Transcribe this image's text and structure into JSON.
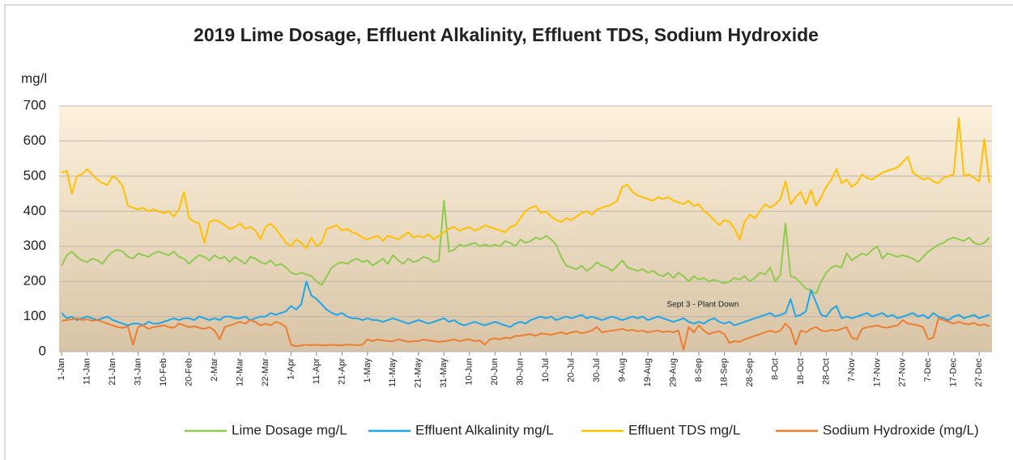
{
  "chart_data": {
    "type": "line",
    "title": "2019 Lime Dosage, Effluent Alkalinity, Effluent TDS, Sodium Hydroxide",
    "y_label": "mg/l",
    "annotation": "Sept 3 - Plant Down",
    "legend": "bottom",
    "grid": true,
    "ylim": [
      0,
      700
    ],
    "yticks": [
      0,
      100,
      200,
      300,
      400,
      500,
      600,
      700
    ],
    "categories": [
      "1-Jan",
      null,
      null,
      null,
      null,
      "11-Jan",
      null,
      null,
      null,
      null,
      "21-Jan",
      null,
      null,
      null,
      null,
      "31-Jan",
      null,
      null,
      null,
      null,
      "10-Feb",
      null,
      null,
      null,
      null,
      "20-Feb",
      null,
      null,
      null,
      null,
      "2-Mar",
      null,
      null,
      null,
      null,
      "12-Mar",
      null,
      null,
      null,
      null,
      "22-Mar",
      null,
      null,
      null,
      null,
      "1-Apr",
      null,
      null,
      null,
      null,
      "11-Apr",
      null,
      null,
      null,
      null,
      "21-Apr",
      null,
      null,
      null,
      null,
      "1-May",
      null,
      null,
      null,
      null,
      "11-May",
      null,
      null,
      null,
      null,
      "21-May",
      null,
      null,
      null,
      null,
      "31-May",
      null,
      null,
      null,
      null,
      "10-Jun",
      null,
      null,
      null,
      null,
      "20-Jun",
      null,
      null,
      null,
      null,
      "30-Jun",
      null,
      null,
      null,
      null,
      "10-Jul",
      null,
      null,
      null,
      null,
      "20-Jul",
      null,
      null,
      null,
      null,
      "30-Jul",
      null,
      null,
      null,
      null,
      "9-Aug",
      null,
      null,
      null,
      null,
      "19-Aug",
      null,
      null,
      null,
      null,
      "29-Aug",
      null,
      null,
      null,
      null,
      "8-Sep",
      null,
      null,
      null,
      null,
      "18-Sep",
      null,
      null,
      null,
      null,
      "28-Sep",
      null,
      null,
      null,
      null,
      "8-Oct",
      null,
      null,
      null,
      null,
      "18-Oct",
      null,
      null,
      null,
      null,
      "28-Oct",
      null,
      null,
      null,
      null,
      "7-Nov",
      null,
      null,
      null,
      null,
      "17-Nov",
      null,
      null,
      null,
      null,
      "27-Nov",
      null,
      null,
      null,
      null,
      "7-Dec",
      null,
      null,
      null,
      null,
      "17-Dec",
      null,
      null,
      null,
      null,
      "27-Dec",
      null,
      null
    ],
    "series": [
      {
        "name": "Lime Dosage mg/L",
        "color": "#8fca4f",
        "values": [
          245,
          275,
          285,
          270,
          260,
          255,
          265,
          260,
          250,
          270,
          285,
          290,
          285,
          270,
          265,
          280,
          275,
          270,
          280,
          285,
          280,
          275,
          285,
          270,
          265,
          250,
          265,
          275,
          270,
          260,
          275,
          265,
          270,
          255,
          270,
          260,
          250,
          270,
          265,
          255,
          250,
          260,
          245,
          250,
          240,
          225,
          220,
          225,
          220,
          215,
          200,
          190,
          215,
          240,
          250,
          255,
          250,
          260,
          265,
          255,
          260,
          245,
          255,
          265,
          250,
          275,
          260,
          250,
          265,
          255,
          260,
          270,
          265,
          255,
          260,
          430,
          285,
          290,
          305,
          300,
          305,
          310,
          300,
          305,
          300,
          305,
          300,
          315,
          310,
          300,
          320,
          310,
          315,
          325,
          320,
          330,
          320,
          305,
          270,
          245,
          240,
          235,
          245,
          230,
          240,
          255,
          245,
          240,
          230,
          245,
          260,
          240,
          235,
          230,
          235,
          225,
          230,
          220,
          215,
          225,
          210,
          225,
          215,
          200,
          215,
          205,
          210,
          200,
          205,
          200,
          195,
          200,
          210,
          205,
          215,
          200,
          210,
          225,
          220,
          240,
          200,
          220,
          365,
          215,
          210,
          195,
          180,
          175,
          165,
          200,
          225,
          240,
          245,
          240,
          280,
          260,
          270,
          280,
          275,
          290,
          300,
          265,
          280,
          275,
          270,
          275,
          270,
          265,
          255,
          270,
          285,
          295,
          305,
          310,
          320,
          325,
          320,
          315,
          325,
          310,
          305,
          310,
          325
        ]
      },
      {
        "name": "Effluent Alkalinity mg/L",
        "color": "#1fa6e8",
        "values": [
          110,
          95,
          100,
          90,
          95,
          100,
          95,
          90,
          95,
          100,
          90,
          85,
          80,
          75,
          80,
          80,
          75,
          85,
          80,
          80,
          85,
          90,
          95,
          90,
          95,
          95,
          90,
          100,
          95,
          90,
          95,
          90,
          100,
          100,
          95,
          95,
          100,
          90,
          95,
          100,
          100,
          110,
          105,
          110,
          115,
          130,
          120,
          135,
          200,
          160,
          150,
          135,
          120,
          110,
          105,
          110,
          100,
          95,
          95,
          90,
          95,
          90,
          90,
          85,
          90,
          95,
          90,
          85,
          80,
          85,
          90,
          85,
          80,
          85,
          90,
          95,
          85,
          90,
          80,
          75,
          80,
          85,
          80,
          75,
          80,
          85,
          80,
          75,
          70,
          80,
          85,
          80,
          90,
          95,
          100,
          95,
          100,
          90,
          95,
          100,
          95,
          100,
          105,
          95,
          100,
          95,
          90,
          95,
          100,
          95,
          90,
          95,
          100,
          95,
          100,
          90,
          95,
          100,
          95,
          90,
          85,
          90,
          95,
          85,
          80,
          85,
          80,
          90,
          95,
          85,
          80,
          85,
          75,
          80,
          85,
          90,
          95,
          100,
          105,
          110,
          100,
          105,
          110,
          150,
          100,
          105,
          115,
          175,
          140,
          105,
          100,
          120,
          130,
          95,
          100,
          95,
          100,
          105,
          110,
          100,
          105,
          110,
          100,
          105,
          95,
          100,
          105,
          110,
          100,
          105,
          95,
          110,
          100,
          95,
          90,
          100,
          105,
          95,
          100,
          105,
          95,
          100,
          105
        ]
      },
      {
        "name": "Effluent TDS mg/L",
        "color": "#ffc000",
        "values": [
          510,
          515,
          450,
          500,
          505,
          520,
          505,
          490,
          480,
          475,
          500,
          490,
          470,
          415,
          410,
          405,
          410,
          400,
          405,
          400,
          395,
          400,
          385,
          405,
          455,
          380,
          370,
          365,
          310,
          370,
          375,
          370,
          360,
          350,
          355,
          365,
          350,
          355,
          345,
          320,
          355,
          365,
          350,
          330,
          310,
          300,
          320,
          310,
          295,
          325,
          300,
          310,
          350,
          355,
          360,
          345,
          350,
          340,
          335,
          325,
          320,
          325,
          330,
          315,
          330,
          325,
          320,
          330,
          340,
          325,
          330,
          325,
          335,
          320,
          330,
          340,
          350,
          355,
          345,
          350,
          355,
          345,
          350,
          360,
          355,
          350,
          345,
          340,
          355,
          360,
          380,
          400,
          410,
          415,
          395,
          400,
          385,
          375,
          370,
          380,
          375,
          385,
          395,
          400,
          390,
          405,
          410,
          415,
          420,
          430,
          470,
          475,
          455,
          445,
          440,
          435,
          430,
          440,
          435,
          440,
          430,
          425,
          420,
          430,
          415,
          420,
          400,
          390,
          375,
          360,
          375,
          370,
          350,
          320,
          370,
          390,
          380,
          400,
          420,
          410,
          420,
          435,
          485,
          420,
          440,
          455,
          420,
          460,
          415,
          440,
          470,
          490,
          520,
          480,
          490,
          470,
          480,
          505,
          495,
          490,
          500,
          510,
          515,
          520,
          525,
          540,
          555,
          510,
          500,
          490,
          495,
          485,
          480,
          495,
          500,
          505,
          665,
          500,
          505,
          495,
          485,
          605,
          480
        ]
      },
      {
        "name": "Sodium Hydroxide (mg/L)",
        "color": "#ed7d31",
        "values": [
          88,
          90,
          92,
          95,
          90,
          92,
          88,
          90,
          85,
          80,
          75,
          70,
          68,
          72,
          20,
          70,
          75,
          65,
          70,
          72,
          75,
          70,
          68,
          80,
          75,
          70,
          72,
          68,
          65,
          70,
          60,
          35,
          70,
          75,
          80,
          85,
          80,
          90,
          85,
          75,
          80,
          75,
          85,
          80,
          70,
          20,
          15,
          18,
          20,
          18,
          20,
          18,
          18,
          20,
          18,
          18,
          20,
          20,
          18,
          20,
          35,
          30,
          35,
          32,
          30,
          30,
          35,
          32,
          28,
          30,
          30,
          35,
          32,
          30,
          28,
          30,
          32,
          35,
          30,
          33,
          35,
          30,
          32,
          20,
          35,
          38,
          35,
          40,
          38,
          45,
          45,
          48,
          50,
          45,
          52,
          50,
          48,
          52,
          55,
          50,
          55,
          58,
          52,
          56,
          60,
          70,
          55,
          58,
          60,
          62,
          65,
          60,
          62,
          58,
          60,
          55,
          58,
          60,
          56,
          58,
          55,
          60,
          5,
          70,
          55,
          75,
          60,
          50,
          55,
          58,
          50,
          25,
          30,
          28,
          35,
          40,
          45,
          50,
          55,
          60,
          55,
          60,
          80,
          65,
          20,
          60,
          55,
          65,
          70,
          60,
          58,
          62,
          60,
          65,
          70,
          40,
          35,
          65,
          70,
          72,
          75,
          70,
          68,
          72,
          75,
          90,
          80,
          78,
          75,
          70,
          35,
          40,
          95,
          90,
          85,
          80,
          85,
          80,
          78,
          82,
          75,
          78,
          72
        ]
      }
    ]
  }
}
